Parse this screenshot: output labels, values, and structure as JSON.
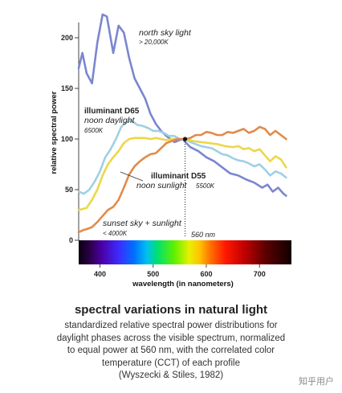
{
  "chart_data": {
    "type": "line",
    "ylabel": "relative spectral power",
    "xlabel": "wavelength (in nanometers)",
    "xlim": [
      360,
      760
    ],
    "ylim": [
      0,
      225
    ],
    "x_ticks": [
      "400",
      "500",
      "600",
      "700"
    ],
    "y_ticks": [
      "0",
      "50",
      "100",
      "150",
      "200"
    ],
    "series": [
      {
        "name": "north sky light",
        "color": "#7b86cf",
        "points": [
          [
            360,
            170
          ],
          [
            367,
            185
          ],
          [
            375,
            165
          ],
          [
            385,
            155
          ],
          [
            395,
            195
          ],
          [
            405,
            223
          ],
          [
            413,
            221
          ],
          [
            425,
            185
          ],
          [
            435,
            212
          ],
          [
            445,
            205
          ],
          [
            455,
            180
          ],
          [
            465,
            160
          ],
          [
            475,
            150
          ],
          [
            485,
            140
          ],
          [
            495,
            125
          ],
          [
            505,
            115
          ],
          [
            515,
            108
          ],
          [
            525,
            103
          ],
          [
            540,
            97
          ],
          [
            555,
            100
          ],
          [
            570,
            92
          ],
          [
            585,
            88
          ],
          [
            600,
            82
          ],
          [
            615,
            78
          ],
          [
            630,
            72
          ],
          [
            645,
            66
          ],
          [
            660,
            64
          ],
          [
            675,
            60
          ],
          [
            690,
            57
          ],
          [
            705,
            52
          ],
          [
            715,
            55
          ],
          [
            725,
            48
          ],
          [
            735,
            52
          ],
          [
            745,
            46
          ],
          [
            750,
            44
          ]
        ]
      },
      {
        "name": "illuminant D65",
        "color": "#9fd0e4",
        "points": [
          [
            360,
            48
          ],
          [
            370,
            46
          ],
          [
            380,
            50
          ],
          [
            390,
            58
          ],
          [
            400,
            68
          ],
          [
            410,
            82
          ],
          [
            420,
            90
          ],
          [
            430,
            100
          ],
          [
            440,
            112
          ],
          [
            450,
            117
          ],
          [
            460,
            118
          ],
          [
            470,
            114
          ],
          [
            480,
            113
          ],
          [
            490,
            111
          ],
          [
            500,
            108
          ],
          [
            510,
            108
          ],
          [
            520,
            106
          ],
          [
            530,
            103
          ],
          [
            540,
            103
          ],
          [
            550,
            100
          ],
          [
            560,
            100
          ],
          [
            570,
            97
          ],
          [
            580,
            95
          ],
          [
            590,
            93
          ],
          [
            600,
            92
          ],
          [
            610,
            91
          ],
          [
            620,
            88
          ],
          [
            630,
            85
          ],
          [
            640,
            84
          ],
          [
            650,
            81
          ],
          [
            660,
            79
          ],
          [
            670,
            78
          ],
          [
            680,
            76
          ],
          [
            690,
            73
          ],
          [
            700,
            75
          ],
          [
            710,
            70
          ],
          [
            720,
            64
          ],
          [
            730,
            68
          ],
          [
            740,
            66
          ],
          [
            750,
            62
          ]
        ]
      },
      {
        "name": "illuminant D55",
        "color": "#ecd74a",
        "points": [
          [
            360,
            30
          ],
          [
            375,
            32
          ],
          [
            385,
            40
          ],
          [
            395,
            50
          ],
          [
            405,
            64
          ],
          [
            415,
            75
          ],
          [
            425,
            82
          ],
          [
            435,
            88
          ],
          [
            445,
            96
          ],
          [
            455,
            100
          ],
          [
            465,
            101
          ],
          [
            475,
            101
          ],
          [
            485,
            101
          ],
          [
            495,
            100
          ],
          [
            505,
            101
          ],
          [
            515,
            100
          ],
          [
            525,
            99
          ],
          [
            535,
            100
          ],
          [
            545,
            100
          ],
          [
            560,
            100
          ],
          [
            575,
            98
          ],
          [
            590,
            97
          ],
          [
            605,
            96
          ],
          [
            620,
            95
          ],
          [
            635,
            93
          ],
          [
            650,
            92
          ],
          [
            660,
            93
          ],
          [
            670,
            90
          ],
          [
            680,
            91
          ],
          [
            690,
            88
          ],
          [
            700,
            90
          ],
          [
            710,
            84
          ],
          [
            720,
            78
          ],
          [
            730,
            83
          ],
          [
            740,
            80
          ],
          [
            750,
            72
          ]
        ]
      },
      {
        "name": "sunset sky + sunlight",
        "color": "#e28b4a",
        "points": [
          [
            360,
            8
          ],
          [
            368,
            10
          ],
          [
            375,
            11
          ],
          [
            385,
            13
          ],
          [
            395,
            18
          ],
          [
            405,
            24
          ],
          [
            415,
            30
          ],
          [
            425,
            33
          ],
          [
            435,
            40
          ],
          [
            445,
            52
          ],
          [
            455,
            65
          ],
          [
            465,
            73
          ],
          [
            475,
            78
          ],
          [
            485,
            82
          ],
          [
            495,
            85
          ],
          [
            505,
            86
          ],
          [
            515,
            91
          ],
          [
            525,
            96
          ],
          [
            535,
            98
          ],
          [
            545,
            100
          ],
          [
            560,
            100
          ],
          [
            570,
            101
          ],
          [
            580,
            104
          ],
          [
            590,
            104
          ],
          [
            600,
            107
          ],
          [
            610,
            106
          ],
          [
            620,
            104
          ],
          [
            630,
            104
          ],
          [
            640,
            107
          ],
          [
            650,
            106
          ],
          [
            660,
            108
          ],
          [
            670,
            110
          ],
          [
            680,
            106
          ],
          [
            690,
            108
          ],
          [
            700,
            112
          ],
          [
            710,
            110
          ],
          [
            720,
            104
          ],
          [
            730,
            108
          ],
          [
            740,
            104
          ],
          [
            750,
            100
          ]
        ]
      }
    ],
    "annotations": {
      "north_title": "north sky light",
      "north_cct": "> 20,000K",
      "d65_title": "illuminant D65",
      "d65_sub": "noon daylight",
      "d65_cct": "6500K",
      "d55_title": "illuminant D55",
      "d55_sub": "noon sunlight",
      "d55_cct": "5500K",
      "sunset_title": "sunset sky + sunlight",
      "sunset_cct": "< 4000K",
      "marker_label": "560 nm"
    },
    "marker": {
      "x": 560,
      "y": 100
    },
    "grid": false,
    "legend": "none (inline annotations)"
  },
  "caption": {
    "title": "spectral variations in natural light",
    "lines": [
      "standardized relative spectral power distributions for",
      "daylight phases across the visible spectrum, normalized",
      "to equal power at 560 nm, with the correlated color",
      "temperature (CCT) of each profile",
      "(Wyszecki & Stiles, 1982)"
    ]
  },
  "watermark": "知乎用户"
}
